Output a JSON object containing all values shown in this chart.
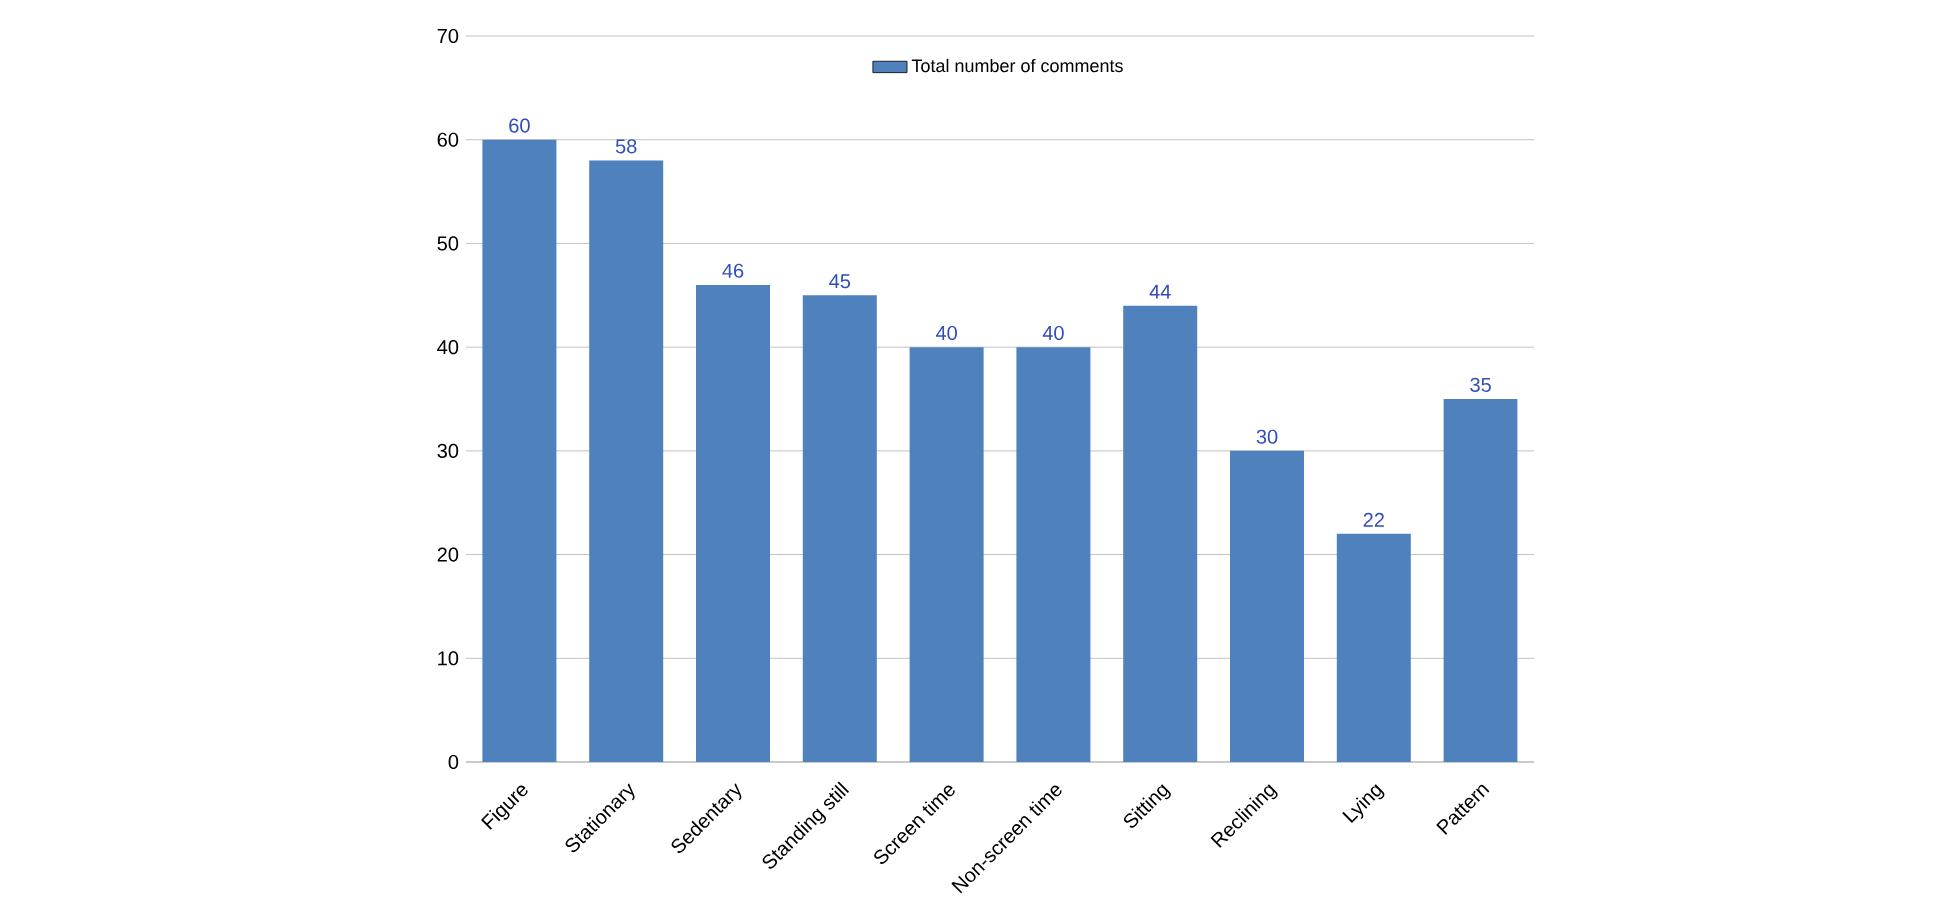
{
  "chart_data": {
    "type": "bar",
    "categories": [
      "Figure",
      "Stationary",
      "Sedentary",
      "Standing still",
      "Screen time",
      "Non-screen time",
      "Sitting",
      "Reclining",
      "Lying",
      "Pattern"
    ],
    "series": [
      {
        "name": "Total number of comments",
        "color": "#4f81bd",
        "values": [
          60,
          58,
          46,
          45,
          40,
          40,
          44,
          30,
          22,
          35
        ]
      }
    ],
    "ylim": [
      0,
      70
    ],
    "yticks": [
      0,
      10,
      20,
      30,
      40,
      50,
      60,
      70
    ],
    "grid": "y",
    "legend": "top",
    "data_labels": true
  }
}
